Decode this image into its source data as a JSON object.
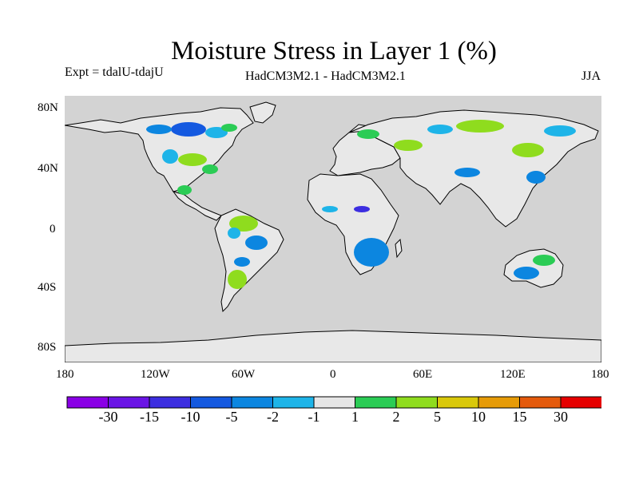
{
  "title": "Moisture Stress in Layer 1 (%)",
  "experiment": "Expt = tdalU-tdajU",
  "models": "HadCM3M2.1 - HadCM3M2.1",
  "season": "JJA",
  "map": {
    "ocean_color": "#d3d3d3",
    "lon_range": [
      -180,
      180
    ],
    "lat_range": [
      -90,
      90
    ],
    "lat_ticks": [
      "80N",
      "40N",
      "0",
      "40S",
      "80S"
    ],
    "lon_ticks": [
      "180",
      "120W",
      "60W",
      "0",
      "60E",
      "120E",
      "180"
    ]
  },
  "colorbar": {
    "colors": [
      "#8a00e6",
      "#6a14e6",
      "#3c2ee0",
      "#1459e0",
      "#0c86e0",
      "#1eb4e8",
      "#e6e6e6",
      "#2bcc55",
      "#8fdc1e",
      "#d9c80a",
      "#e69b08",
      "#e45a0c",
      "#e60000"
    ],
    "labels": [
      "-30",
      "-15",
      "-10",
      "-5",
      "-2",
      "-1",
      "1",
      "2",
      "5",
      "10",
      "15",
      "30"
    ]
  }
}
